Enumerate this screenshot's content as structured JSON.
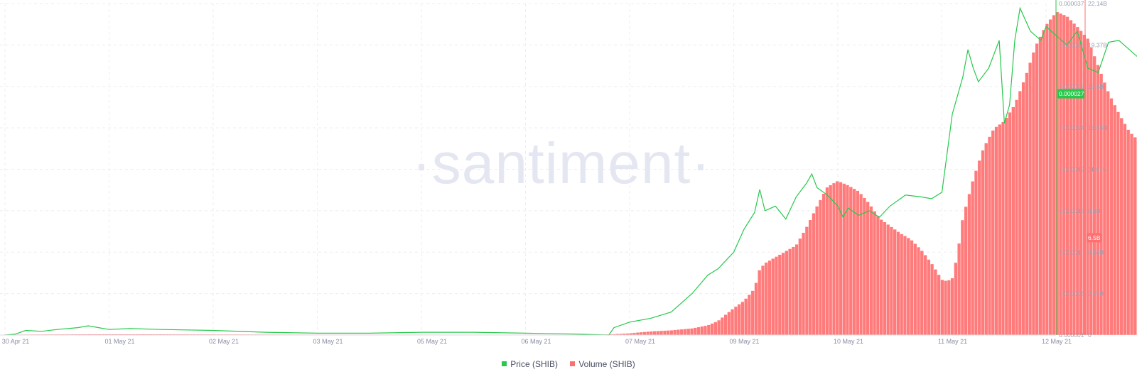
{
  "chart_data": {
    "type": "bar+line",
    "watermark": "·santiment·",
    "x_ticks": [
      "30 Apr 21",
      "01 May 21",
      "02 May 21",
      "03 May 21",
      "05 May 21",
      "06 May 21",
      "07 May 21",
      "09 May 21",
      "10 May 21",
      "11 May 21",
      "12 May 21"
    ],
    "x_tick_days": [
      0,
      1,
      2,
      3,
      4,
      5,
      6,
      7,
      8,
      9,
      10
    ],
    "left_axis": {
      "series": "Price (SHIB)",
      "ticks": [
        "0.000037",
        "0.000033",
        "0.000028",
        "0.000024",
        "0.000019",
        "0.000015",
        "0.00001",
        "0.000006",
        "0.000001"
      ],
      "ylim": [
        1e-06,
        3.7e-05
      ],
      "current_value": "0.000027",
      "color": "#26c94a"
    },
    "right_axis": {
      "series": "Volume (SHIB)",
      "ticks": [
        "22.14B",
        "19.37B",
        "16.6B",
        "13.83B",
        "11.07B",
        "8.3B",
        "5.53B",
        "2.76B",
        "0"
      ],
      "ylim": [
        0,
        22.14
      ],
      "unit": "B",
      "current_value": "6.5B",
      "color": "#ff6f6f"
    },
    "series": [
      {
        "name": "Price (SHIB)",
        "type": "line",
        "color": "#26c94a",
        "points": [
          [
            0,
            1e-06
          ],
          [
            0.1,
            1.1e-06
          ],
          [
            0.2,
            1.5e-06
          ],
          [
            0.35,
            1.4e-06
          ],
          [
            0.5,
            1.6e-06
          ],
          [
            0.7,
            1.8e-06
          ],
          [
            0.8,
            2e-06
          ],
          [
            0.9,
            1.8e-06
          ],
          [
            1.0,
            1.6e-06
          ],
          [
            1.2,
            1.7e-06
          ],
          [
            1.5,
            1.6e-06
          ],
          [
            2.0,
            1.5e-06
          ],
          [
            2.5,
            1.3e-06
          ],
          [
            3.0,
            1.2e-06
          ],
          [
            3.5,
            1.2e-06
          ],
          [
            4.0,
            1.3e-06
          ],
          [
            4.5,
            1.3e-06
          ],
          [
            5.0,
            1.2e-06
          ],
          [
            5.5,
            1.1e-06
          ],
          [
            5.8,
            1e-06
          ],
          [
            5.85,
            1.8e-06
          ],
          [
            6.0,
            2.4e-06
          ],
          [
            6.2,
            2.8e-06
          ],
          [
            6.4,
            3.5e-06
          ],
          [
            6.6,
            5.5e-06
          ],
          [
            6.75,
            7.5e-06
          ],
          [
            6.85,
            8.2e-06
          ],
          [
            7.0,
            1e-05
          ],
          [
            7.1,
            1.25e-05
          ],
          [
            7.2,
            1.43e-05
          ],
          [
            7.25,
            1.68e-05
          ],
          [
            7.3,
            1.45e-05
          ],
          [
            7.4,
            1.5e-05
          ],
          [
            7.5,
            1.36e-05
          ],
          [
            7.6,
            1.6e-05
          ],
          [
            7.7,
            1.75e-05
          ],
          [
            7.75,
            1.85e-05
          ],
          [
            7.8,
            1.7e-05
          ],
          [
            7.9,
            1.62e-05
          ],
          [
            8.0,
            1.5e-05
          ],
          [
            8.05,
            1.38e-05
          ],
          [
            8.1,
            1.48e-05
          ],
          [
            8.2,
            1.4e-05
          ],
          [
            8.3,
            1.45e-05
          ],
          [
            8.4,
            1.38e-05
          ],
          [
            8.5,
            1.5e-05
          ],
          [
            8.65,
            1.62e-05
          ],
          [
            8.8,
            1.6e-05
          ],
          [
            8.9,
            1.58e-05
          ],
          [
            9.0,
            1.65e-05
          ],
          [
            9.1,
            2.5e-05
          ],
          [
            9.2,
            2.9e-05
          ],
          [
            9.25,
            3.2e-05
          ],
          [
            9.3,
            3e-05
          ],
          [
            9.35,
            2.85e-05
          ],
          [
            9.45,
            3e-05
          ],
          [
            9.55,
            3.3e-05
          ],
          [
            9.6,
            2.4e-05
          ],
          [
            9.65,
            2.6e-05
          ],
          [
            9.7,
            3.3e-05
          ],
          [
            9.75,
            3.65e-05
          ],
          [
            9.85,
            3.4e-05
          ],
          [
            9.95,
            3.3e-05
          ],
          [
            10.0,
            3.45e-05
          ],
          [
            10.2,
            3.25e-05
          ],
          [
            10.3,
            3.4e-05
          ],
          [
            10.4,
            3e-05
          ],
          [
            10.5,
            2.95e-05
          ],
          [
            10.6,
            3.28e-05
          ],
          [
            10.7,
            3.3e-05
          ],
          [
            10.9,
            3.1e-05
          ],
          [
            11.0,
            2.95e-05
          ],
          [
            11.1,
            2.8e-05
          ],
          [
            11.2,
            2.98e-05
          ],
          [
            11.3,
            2.8e-05
          ],
          [
            11.4,
            2.5e-05
          ],
          [
            11.5,
            2.8e-05
          ],
          [
            11.6,
            2.76e-05
          ],
          [
            11.7,
            2.9e-05
          ],
          [
            11.8,
            2.82e-05
          ],
          [
            11.9,
            2.78e-05
          ],
          [
            12.0,
            2.7e-05
          ],
          [
            12.05,
            2.72e-05
          ]
        ]
      },
      {
        "name": "Volume (SHIB)",
        "type": "bar",
        "unit": "B",
        "color": "#ff7b7b",
        "points": [
          [
            0,
            0.04
          ],
          [
            1,
            0.06
          ],
          [
            2,
            0.05
          ],
          [
            3,
            0.04
          ],
          [
            4,
            0.04
          ],
          [
            5,
            0.03
          ],
          [
            5.8,
            0.05
          ],
          [
            6.0,
            0.12
          ],
          [
            6.2,
            0.25
          ],
          [
            6.4,
            0.32
          ],
          [
            6.6,
            0.45
          ],
          [
            6.75,
            0.65
          ],
          [
            6.85,
            0.95
          ],
          [
            7.0,
            1.8
          ],
          [
            7.1,
            2.3
          ],
          [
            7.2,
            3.1
          ],
          [
            7.25,
            4.4
          ],
          [
            7.3,
            4.8
          ],
          [
            7.4,
            5.2
          ],
          [
            7.5,
            5.6
          ],
          [
            7.6,
            6.0
          ],
          [
            7.7,
            7.2
          ],
          [
            7.8,
            8.6
          ],
          [
            7.9,
            9.9
          ],
          [
            8.0,
            10.3
          ],
          [
            8.1,
            10.0
          ],
          [
            8.2,
            9.6
          ],
          [
            8.3,
            8.8
          ],
          [
            8.4,
            7.8
          ],
          [
            8.5,
            7.3
          ],
          [
            8.6,
            6.8
          ],
          [
            8.7,
            6.4
          ],
          [
            8.8,
            5.7
          ],
          [
            8.9,
            4.8
          ],
          [
            9.0,
            3.7
          ],
          [
            9.05,
            3.6
          ],
          [
            9.1,
            3.8
          ],
          [
            9.15,
            5.4
          ],
          [
            9.2,
            7.8
          ],
          [
            9.3,
            10.4
          ],
          [
            9.4,
            12.5
          ],
          [
            9.5,
            13.8
          ],
          [
            9.6,
            14.3
          ],
          [
            9.7,
            15.4
          ],
          [
            9.8,
            17.2
          ],
          [
            9.9,
            19.3
          ],
          [
            10.0,
            20.7
          ],
          [
            10.1,
            21.6
          ],
          [
            10.2,
            21.3
          ],
          [
            10.3,
            20.6
          ],
          [
            10.4,
            19.8
          ],
          [
            10.5,
            18.0
          ],
          [
            10.6,
            16.2
          ],
          [
            10.7,
            14.8
          ],
          [
            10.8,
            13.6
          ],
          [
            10.9,
            12.9
          ],
          [
            11.0,
            12.3
          ],
          [
            11.1,
            11.9
          ],
          [
            11.2,
            10.9
          ],
          [
            11.3,
            9.9
          ],
          [
            11.4,
            9.0
          ],
          [
            11.5,
            8.5
          ],
          [
            11.6,
            8.4
          ],
          [
            11.7,
            8.2
          ],
          [
            11.8,
            7.5
          ],
          [
            11.9,
            7.0
          ],
          [
            12.0,
            6.6
          ],
          [
            12.05,
            6.5
          ]
        ]
      }
    ],
    "legend": [
      {
        "label": "Price (SHIB)",
        "color": "#26c94a"
      },
      {
        "label": "Volume (SHIB)",
        "color": "#ff6f6f"
      }
    ],
    "grid": true,
    "legend_position": "bottom"
  }
}
